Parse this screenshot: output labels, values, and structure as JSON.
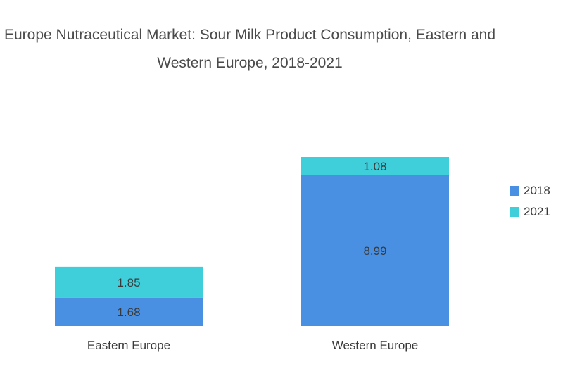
{
  "chart_data": {
    "type": "bar",
    "stacked": true,
    "title": "Europe Nutraceutical Market: Sour Milk Product Consumption, Eastern and Western Europe, 2018-2021",
    "title_lines": [
      "Europe Nutraceutical Market: Sour Milk Product Consumption, Eastern and",
      "Western Europe, 2018-2021"
    ],
    "categories": [
      "Eastern Europe",
      "Western Europe"
    ],
    "series": [
      {
        "name": "2018",
        "color": "#4a90e2",
        "values": [
          1.68,
          8.99
        ]
      },
      {
        "name": "2021",
        "color": "#3ecfdb",
        "values": [
          1.85,
          1.08
        ]
      }
    ],
    "xlabel": "",
    "ylabel": "",
    "ylim": [
      0,
      10.07
    ],
    "grid": false,
    "legend": "right"
  }
}
